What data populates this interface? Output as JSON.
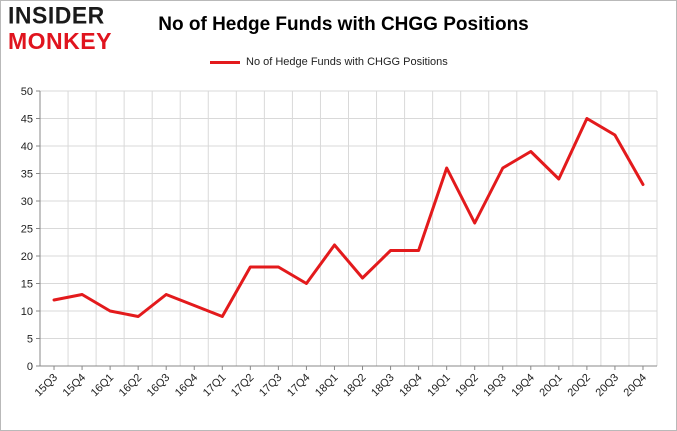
{
  "logo": {
    "line1": "INSIDER",
    "line2": "MONKEY"
  },
  "chart_data": {
    "type": "line",
    "title": "No of Hedge Funds with CHGG Positions",
    "xlabel": "",
    "ylabel": "",
    "ylim": [
      0,
      50
    ],
    "yticks": [
      0,
      5,
      10,
      15,
      20,
      25,
      30,
      35,
      40,
      45,
      50
    ],
    "grid": true,
    "legend_position": "top-center",
    "categories": [
      "15Q3",
      "15Q4",
      "16Q1",
      "16Q2",
      "16Q3",
      "16Q4",
      "17Q1",
      "17Q2",
      "17Q3",
      "17Q4",
      "18Q1",
      "18Q2",
      "18Q3",
      "18Q4",
      "19Q1",
      "19Q2",
      "19Q3",
      "19Q4",
      "20Q1",
      "20Q2",
      "20Q3",
      "20Q4"
    ],
    "series": [
      {
        "name": "No of Hedge Funds with CHGG Positions",
        "color": "#e31a1c",
        "values": [
          12,
          13,
          10,
          9,
          13,
          11,
          9,
          18,
          18,
          15,
          22,
          16,
          21,
          21,
          36,
          26,
          36,
          39,
          34,
          45,
          42,
          33
        ]
      }
    ]
  }
}
